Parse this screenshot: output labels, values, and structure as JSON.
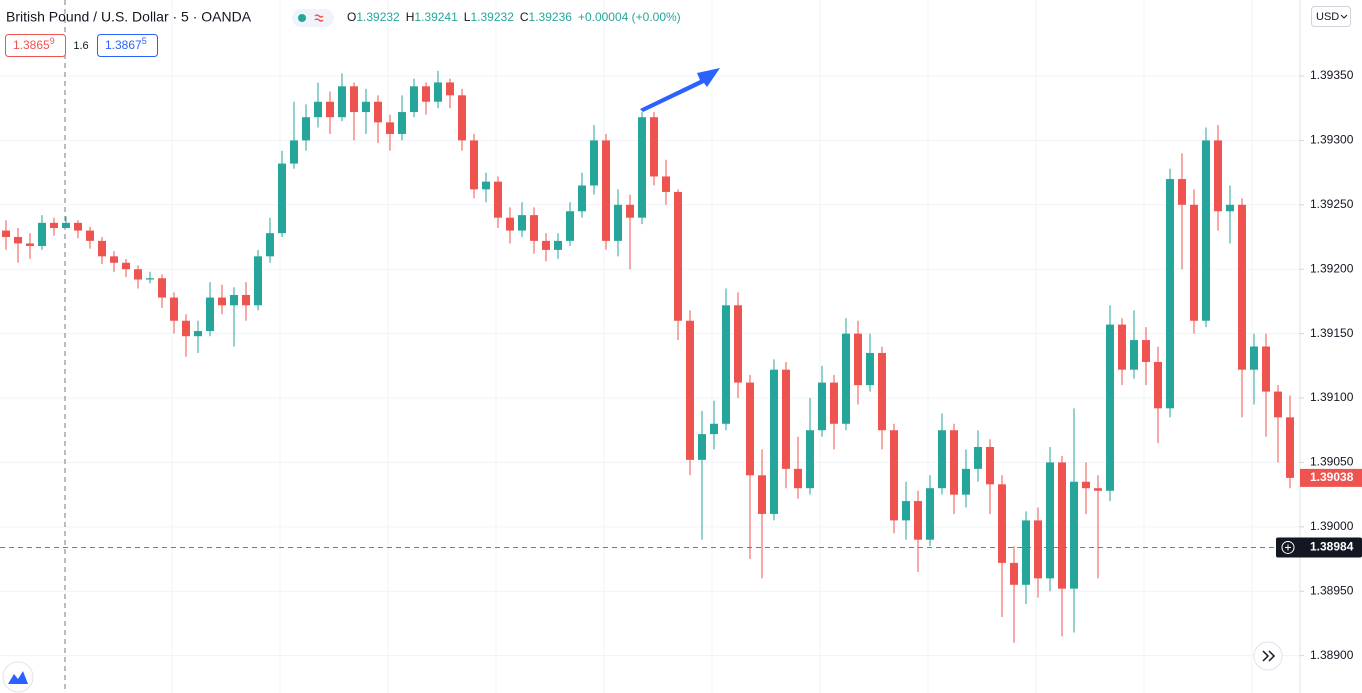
{
  "chart_data": {
    "type": "candlestick",
    "title": "British Pound / U.S. Dollar · 5 · OANDA",
    "ohlc_legend": [
      {
        "label": "O",
        "value": "1.39232"
      },
      {
        "label": "H",
        "value": "1.39241"
      },
      {
        "label": "L",
        "value": "1.39232"
      },
      {
        "label": "C",
        "value": "1.39236"
      }
    ],
    "change": "+0.00004 (+0.00%)",
    "sell": {
      "price": "1.3865",
      "pip": "9"
    },
    "spread": "1.6",
    "buy": {
      "price": "1.3867",
      "pip": "5"
    },
    "currency": "USD",
    "up_color": "#26a69a",
    "down_color": "#ef5350",
    "ylim": [
      1.38871,
      1.39409
    ],
    "yticks": [
      {
        "value": 1.389,
        "label": "1.38900"
      },
      {
        "value": 1.3895,
        "label": "1.38950"
      },
      {
        "value": 1.39,
        "label": "1.39000"
      },
      {
        "value": 1.3905,
        "label": "1.39050"
      },
      {
        "value": 1.391,
        "label": "1.39100"
      },
      {
        "value": 1.3915,
        "label": "1.39150"
      },
      {
        "value": 1.392,
        "label": "1.39200"
      },
      {
        "value": 1.3925,
        "label": "1.39250"
      },
      {
        "value": 1.393,
        "label": "1.39300"
      },
      {
        "value": 1.3935,
        "label": "1.39350"
      }
    ],
    "grid": true,
    "last_price": {
      "value": 1.39038,
      "label": "1.39038"
    },
    "crosshair_price": {
      "value": 1.38984,
      "label": "1.38984"
    },
    "open": [
      1.3923,
      1.39225,
      1.3922,
      1.39218,
      1.39236,
      1.39232,
      1.39236,
      1.3923,
      1.39222,
      1.3921,
      1.39205,
      1.392,
      1.39192,
      1.39193,
      1.39178,
      1.3916,
      1.39148,
      1.39152,
      1.39178,
      1.39172,
      1.3918,
      1.39172,
      1.3921,
      1.39228,
      1.39282,
      1.393,
      1.39318,
      1.3933,
      1.39318,
      1.39342,
      1.39322,
      1.3933,
      1.39314,
      1.39305,
      1.39322,
      1.39342,
      1.3933,
      1.39345,
      1.39335,
      1.393,
      1.39262,
      1.39268,
      1.3924,
      1.3923,
      1.39242,
      1.39222,
      1.39215,
      1.39222,
      1.39245,
      1.39265,
      1.393,
      1.39222,
      1.3925,
      1.3924,
      1.39318,
      1.39272,
      1.3926,
      1.3916,
      1.39052,
      1.39072,
      1.3908,
      1.39172,
      1.39112,
      1.3904,
      1.3901,
      1.39122,
      1.39045,
      1.3903,
      1.39075,
      1.39112,
      1.3908,
      1.3915,
      1.3911,
      1.39135,
      1.39075,
      1.39005,
      1.3902,
      1.3899,
      1.3903,
      1.39075,
      1.39025,
      1.39045,
      1.39062,
      1.39033,
      1.38972,
      1.38955,
      1.39005,
      1.3896,
      1.3905,
      1.38952,
      1.39035,
      1.3903,
      1.39028,
      1.39157,
      1.39122,
      1.39145,
      1.39128,
      1.39092,
      1.3927,
      1.3925,
      1.3916,
      1.393,
      1.39245,
      1.3925,
      1.39122,
      1.3914,
      1.39105,
      1.39085
    ],
    "high": [
      1.39238,
      1.39232,
      1.39228,
      1.39242,
      1.3924,
      1.39241,
      1.39238,
      1.39233,
      1.39225,
      1.39214,
      1.39208,
      1.39203,
      1.39198,
      1.39196,
      1.39182,
      1.39165,
      1.3916,
      1.3919,
      1.39188,
      1.39186,
      1.3919,
      1.39215,
      1.3924,
      1.39292,
      1.3933,
      1.39328,
      1.39345,
      1.39338,
      1.39352,
      1.39345,
      1.3934,
      1.39335,
      1.3932,
      1.39335,
      1.39348,
      1.39345,
      1.39354,
      1.39348,
      1.3934,
      1.39305,
      1.39275,
      1.39272,
      1.39248,
      1.39252,
      1.39248,
      1.39228,
      1.39228,
      1.39252,
      1.39275,
      1.39312,
      1.39305,
      1.39262,
      1.39258,
      1.39322,
      1.39322,
      1.39285,
      1.39262,
      1.39168,
      1.3909,
      1.39098,
      1.39185,
      1.39182,
      1.39118,
      1.3906,
      1.3913,
      1.39128,
      1.3907,
      1.391,
      1.39125,
      1.39118,
      1.39162,
      1.3916,
      1.3915,
      1.3914,
      1.3908,
      1.39035,
      1.39028,
      1.3904,
      1.39088,
      1.3908,
      1.3906,
      1.39075,
      1.39068,
      1.3904,
      1.38985,
      1.39012,
      1.39015,
      1.39062,
      1.39055,
      1.39092,
      1.3905,
      1.3904,
      1.39172,
      1.39162,
      1.39168,
      1.39155,
      1.3914,
      1.39278,
      1.3929,
      1.39262,
      1.3931,
      1.39312,
      1.39265,
      1.39255,
      1.3915,
      1.3915,
      1.3911,
      1.39102
    ],
    "low": [
      1.39215,
      1.39205,
      1.39208,
      1.39215,
      1.39226,
      1.39232,
      1.39224,
      1.39216,
      1.39204,
      1.39198,
      1.39194,
      1.39185,
      1.39189,
      1.3917,
      1.3915,
      1.39132,
      1.39135,
      1.39148,
      1.39165,
      1.3914,
      1.3916,
      1.39168,
      1.39205,
      1.39225,
      1.39278,
      1.39292,
      1.3931,
      1.39305,
      1.39315,
      1.393,
      1.39305,
      1.39298,
      1.39292,
      1.393,
      1.39318,
      1.3932,
      1.39325,
      1.39325,
      1.39292,
      1.39255,
      1.39252,
      1.39232,
      1.3922,
      1.39225,
      1.39212,
      1.39206,
      1.39208,
      1.39218,
      1.3924,
      1.39258,
      1.39215,
      1.3921,
      1.392,
      1.39235,
      1.39265,
      1.3925,
      1.39145,
      1.3904,
      1.3899,
      1.3906,
      1.39075,
      1.391,
      1.38975,
      1.3896,
      1.39005,
      1.3903,
      1.39022,
      1.39025,
      1.3907,
      1.3906,
      1.39075,
      1.39095,
      1.39105,
      1.3906,
      1.38995,
      1.3899,
      1.38965,
      1.38985,
      1.39025,
      1.3901,
      1.39015,
      1.39035,
      1.3901,
      1.3893,
      1.3891,
      1.3894,
      1.38945,
      1.3895,
      1.38915,
      1.38918,
      1.3901,
      1.3896,
      1.3902,
      1.3911,
      1.39115,
      1.3911,
      1.39065,
      1.39085,
      1.392,
      1.3915,
      1.39155,
      1.3923,
      1.3922,
      1.39085,
      1.39095,
      1.3907,
      1.3905,
      1.3903
    ],
    "close": [
      1.39225,
      1.3922,
      1.39218,
      1.39236,
      1.39232,
      1.39236,
      1.3923,
      1.39222,
      1.3921,
      1.39205,
      1.392,
      1.39192,
      1.39193,
      1.39178,
      1.3916,
      1.39148,
      1.39152,
      1.39178,
      1.39172,
      1.3918,
      1.39172,
      1.3921,
      1.39228,
      1.39282,
      1.393,
      1.39318,
      1.3933,
      1.39318,
      1.39342,
      1.39322,
      1.3933,
      1.39314,
      1.39305,
      1.39322,
      1.39342,
      1.3933,
      1.39345,
      1.39335,
      1.393,
      1.39262,
      1.39268,
      1.3924,
      1.3923,
      1.39242,
      1.39222,
      1.39215,
      1.39222,
      1.39245,
      1.39265,
      1.393,
      1.39222,
      1.3925,
      1.3924,
      1.39318,
      1.39272,
      1.3926,
      1.3916,
      1.39052,
      1.39072,
      1.3908,
      1.39172,
      1.39112,
      1.3904,
      1.3901,
      1.39122,
      1.39045,
      1.3903,
      1.39075,
      1.39112,
      1.3908,
      1.3915,
      1.3911,
      1.39135,
      1.39075,
      1.39005,
      1.3902,
      1.3899,
      1.3903,
      1.39075,
      1.39025,
      1.39045,
      1.39062,
      1.39033,
      1.38972,
      1.38955,
      1.39005,
      1.3896,
      1.3905,
      1.38952,
      1.39035,
      1.3903,
      1.39028,
      1.39157,
      1.39122,
      1.39145,
      1.39128,
      1.39092,
      1.3927,
      1.3925,
      1.3916,
      1.393,
      1.39245,
      1.3925,
      1.39122,
      1.3914,
      1.39105,
      1.39085,
      1.39038
    ]
  }
}
